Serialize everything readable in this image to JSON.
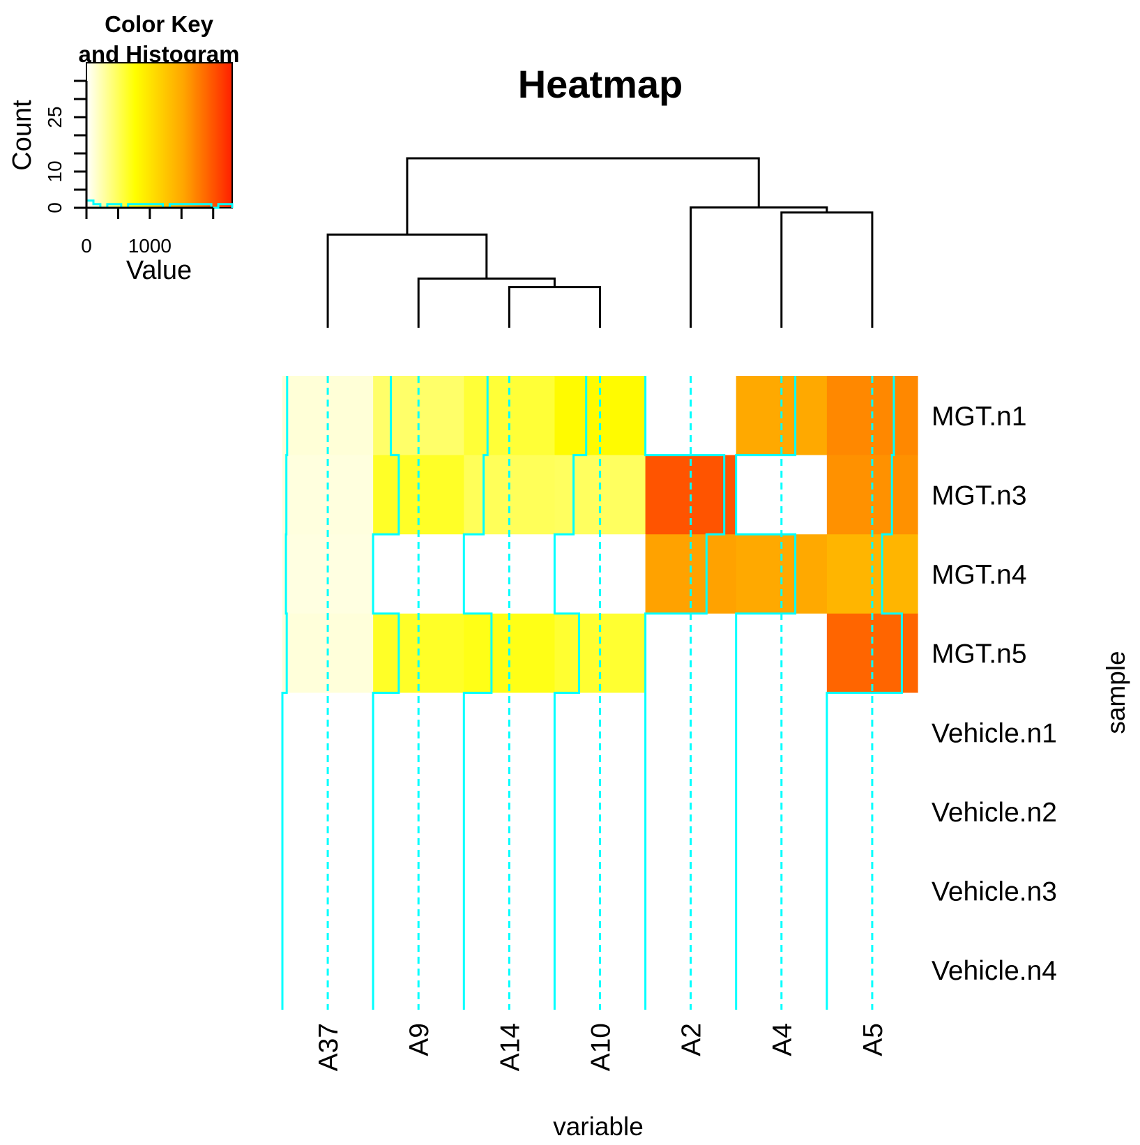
{
  "chart_data": {
    "type": "heatmap",
    "title": "Heatmap",
    "xlabel": "variable",
    "ylabel": "sample",
    "columns": [
      "A37",
      "A9",
      "A14",
      "A10",
      "A2",
      "A4",
      "A5"
    ],
    "rows": [
      "MGT.n1",
      "MGT.n3",
      "MGT.n4",
      "MGT.n5",
      "Vehicle.n1",
      "Vehicle.n2",
      "Vehicle.n3",
      "Vehicle.n4"
    ],
    "values": [
      [
        120,
        450,
        600,
        800,
        null,
        1500,
        1700
      ],
      [
        100,
        650,
        500,
        480,
        2000,
        null,
        1650
      ],
      [
        90,
        null,
        null,
        null,
        1550,
        1500,
        1400
      ],
      [
        110,
        650,
        700,
        620,
        null,
        null,
        1900
      ],
      [
        null,
        null,
        null,
        null,
        null,
        null,
        null
      ],
      [
        null,
        null,
        null,
        null,
        null,
        null,
        null
      ],
      [
        null,
        null,
        null,
        null,
        null,
        null,
        null
      ],
      [
        null,
        null,
        null,
        null,
        null,
        null,
        null
      ]
    ],
    "value_range": [
      0,
      2300
    ],
    "colorscale": [
      "#ffffff",
      "#ffff00",
      "#ffa500",
      "#ff2000"
    ],
    "colors": {
      "trace": "#00ffff",
      "dendrogram": "#000000",
      "na_cell": "#ffffff"
    },
    "column_dendrogram": {
      "merges": [
        {
          "left": "A14",
          "right": "A10"
        },
        {
          "left": "A9",
          "right": "A14+A10"
        },
        {
          "left": "A37",
          "right": "A9+A14+A10"
        },
        {
          "left": "A4",
          "right": "A5"
        },
        {
          "left": "A2",
          "right": "A4+A5"
        },
        {
          "left": "A37+A9+A14+A10",
          "right": "A2+A4+A5"
        }
      ]
    },
    "color_key": {
      "title_line1": "Color Key",
      "title_line2": "and Histogram",
      "xlabel": "Value",
      "ylabel": "Count",
      "x_ticks": [
        0,
        500,
        1000,
        1500,
        2000
      ],
      "x_tick_labels": [
        "0",
        "1000"
      ],
      "y_ticks": [
        0,
        5,
        10,
        15,
        20,
        25,
        30,
        35
      ],
      "y_tick_labels": [
        "0",
        "10",
        "25"
      ],
      "y_max": 40,
      "histogram": [
        2,
        1,
        0,
        1,
        1,
        0,
        1,
        1,
        1,
        1,
        1,
        0,
        1,
        1,
        1,
        1,
        1,
        1,
        0,
        1,
        1
      ]
    }
  }
}
